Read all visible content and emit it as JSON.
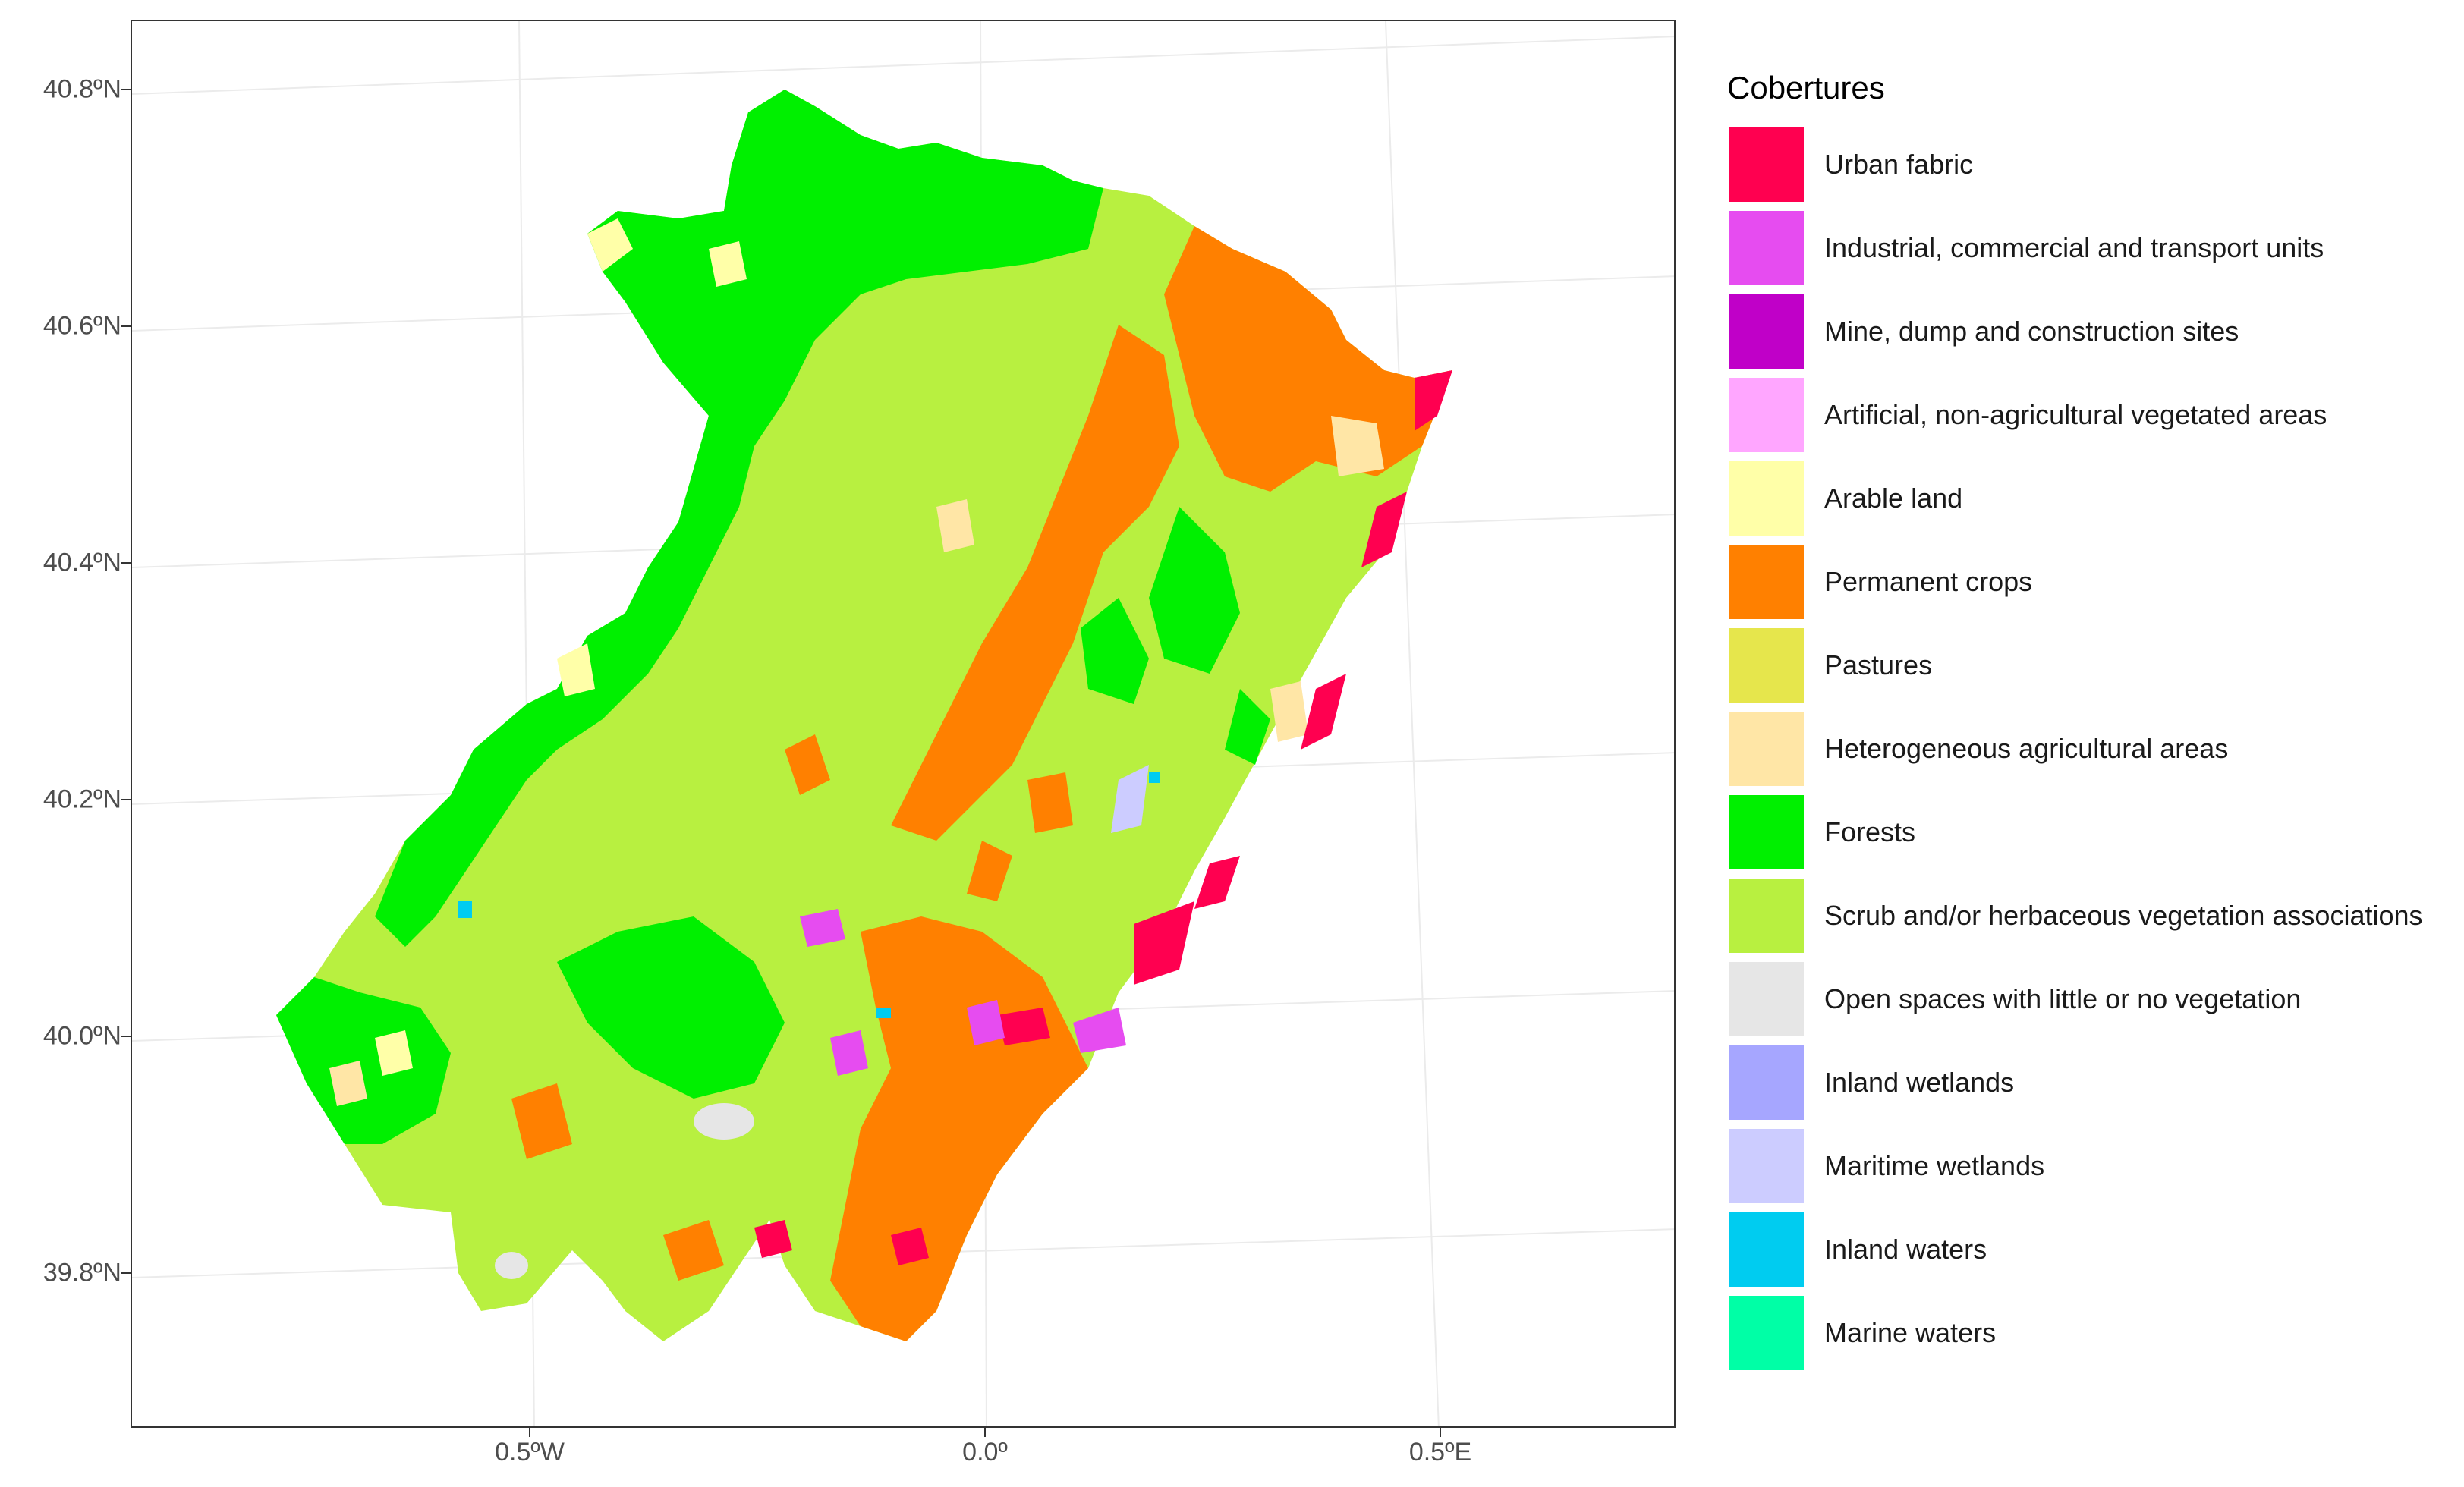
{
  "map": {
    "y_ticks": [
      {
        "label": "40.8ºN",
        "value": 40.8
      },
      {
        "label": "40.6ºN",
        "value": 40.6
      },
      {
        "label": "40.4ºN",
        "value": 40.4
      },
      {
        "label": "40.2ºN",
        "value": 40.2
      },
      {
        "label": "40.0ºN",
        "value": 40.0
      },
      {
        "label": "39.8ºN",
        "value": 39.8
      }
    ],
    "x_ticks": [
      {
        "label": "0.5ºW",
        "value": -0.5
      },
      {
        "label": "0.0º",
        "value": 0.0
      },
      {
        "label": "0.5ºE",
        "value": 0.5
      }
    ],
    "grid": true
  },
  "legend": {
    "title": "Cobertures",
    "items": [
      {
        "label": "Urban fabric",
        "color": "#FF0050"
      },
      {
        "label": "Industrial, commercial and transport units",
        "color": "#E64CF0"
      },
      {
        "label": "Mine, dump and construction sites",
        "color": "#C000C8"
      },
      {
        "label": "Artificial, non-agricultural vegetated areas",
        "color": "#FFA6FF"
      },
      {
        "label": "Arable land",
        "color": "#FFFFA8"
      },
      {
        "label": "Permanent crops",
        "color": "#FF8000"
      },
      {
        "label": "Pastures",
        "color": "#E6E64C"
      },
      {
        "label": "Heterogeneous agricultural areas",
        "color": "#FFE6A6"
      },
      {
        "label": "Forests",
        "color": "#00F000"
      },
      {
        "label": "Scrub and/or herbaceous vegetation associations",
        "color": "#B8F040"
      },
      {
        "label": "Open spaces with little or no vegetation",
        "color": "#E6E6E6"
      },
      {
        "label": "Inland wetlands",
        "color": "#A6A6FF"
      },
      {
        "label": "Maritime wetlands",
        "color": "#CCCCFF"
      },
      {
        "label": "Inland waters",
        "color": "#00CCF0"
      },
      {
        "label": "Marine waters",
        "color": "#00FFA6"
      }
    ]
  }
}
